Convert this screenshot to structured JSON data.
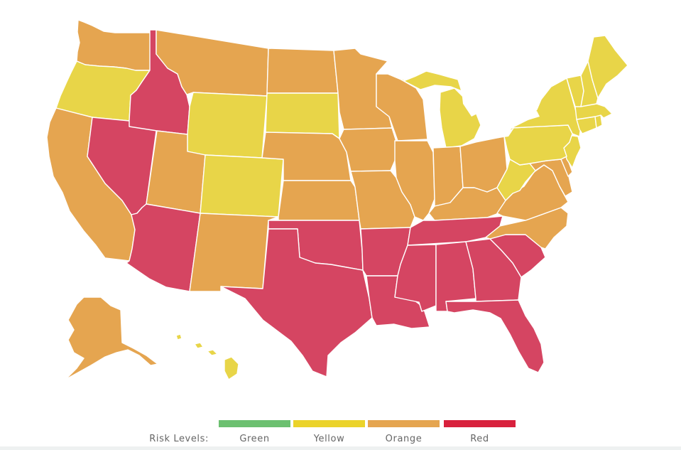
{
  "colors": {
    "green": "#6cc070",
    "yellow": "#e8d548",
    "orange": "#e5a550",
    "red": "#d54562",
    "red_swatch": "#d8213d",
    "yellow_swatch": "#ebd32a",
    "orange_swatch": "#e5a550",
    "green_swatch": "#6cc070"
  },
  "legend": {
    "title": "Risk Levels:",
    "levels": [
      {
        "label": "Green",
        "color": "#6cc070"
      },
      {
        "label": "Yellow",
        "color": "#ebd32a"
      },
      {
        "label": "Orange",
        "color": "#e5a550"
      },
      {
        "label": "Red",
        "color": "#d8213d"
      }
    ]
  },
  "states": [
    {
      "code": "WA",
      "level": "orange"
    },
    {
      "code": "OR",
      "level": "yellow"
    },
    {
      "code": "CA",
      "level": "orange"
    },
    {
      "code": "NV",
      "level": "red"
    },
    {
      "code": "ID",
      "level": "red"
    },
    {
      "code": "MT",
      "level": "orange"
    },
    {
      "code": "WY",
      "level": "yellow"
    },
    {
      "code": "UT",
      "level": "orange"
    },
    {
      "code": "AZ",
      "level": "red"
    },
    {
      "code": "CO",
      "level": "yellow"
    },
    {
      "code": "NM",
      "level": "orange"
    },
    {
      "code": "ND",
      "level": "orange"
    },
    {
      "code": "SD",
      "level": "yellow"
    },
    {
      "code": "NE",
      "level": "orange"
    },
    {
      "code": "KS",
      "level": "orange"
    },
    {
      "code": "OK",
      "level": "red"
    },
    {
      "code": "TX",
      "level": "red"
    },
    {
      "code": "MN",
      "level": "orange"
    },
    {
      "code": "IA",
      "level": "orange"
    },
    {
      "code": "MO",
      "level": "orange"
    },
    {
      "code": "AR",
      "level": "red"
    },
    {
      "code": "LA",
      "level": "red"
    },
    {
      "code": "WI",
      "level": "orange"
    },
    {
      "code": "IL",
      "level": "orange"
    },
    {
      "code": "MI",
      "level": "yellow"
    },
    {
      "code": "IN",
      "level": "orange"
    },
    {
      "code": "OH",
      "level": "orange"
    },
    {
      "code": "KY",
      "level": "orange"
    },
    {
      "code": "TN",
      "level": "red"
    },
    {
      "code": "MS",
      "level": "red"
    },
    {
      "code": "AL",
      "level": "red"
    },
    {
      "code": "GA",
      "level": "red"
    },
    {
      "code": "FL",
      "level": "red"
    },
    {
      "code": "SC",
      "level": "red"
    },
    {
      "code": "NC",
      "level": "orange"
    },
    {
      "code": "VA",
      "level": "orange"
    },
    {
      "code": "WV",
      "level": "yellow"
    },
    {
      "code": "MD",
      "level": "orange"
    },
    {
      "code": "DE",
      "level": "orange"
    },
    {
      "code": "NJ",
      "level": "yellow"
    },
    {
      "code": "PA",
      "level": "yellow"
    },
    {
      "code": "NY",
      "level": "yellow"
    },
    {
      "code": "CT",
      "level": "yellow"
    },
    {
      "code": "RI",
      "level": "yellow"
    },
    {
      "code": "MA",
      "level": "yellow"
    },
    {
      "code": "VT",
      "level": "yellow"
    },
    {
      "code": "NH",
      "level": "yellow"
    },
    {
      "code": "ME",
      "level": "yellow"
    },
    {
      "code": "AK",
      "level": "orange"
    },
    {
      "code": "HI",
      "level": "yellow"
    }
  ]
}
